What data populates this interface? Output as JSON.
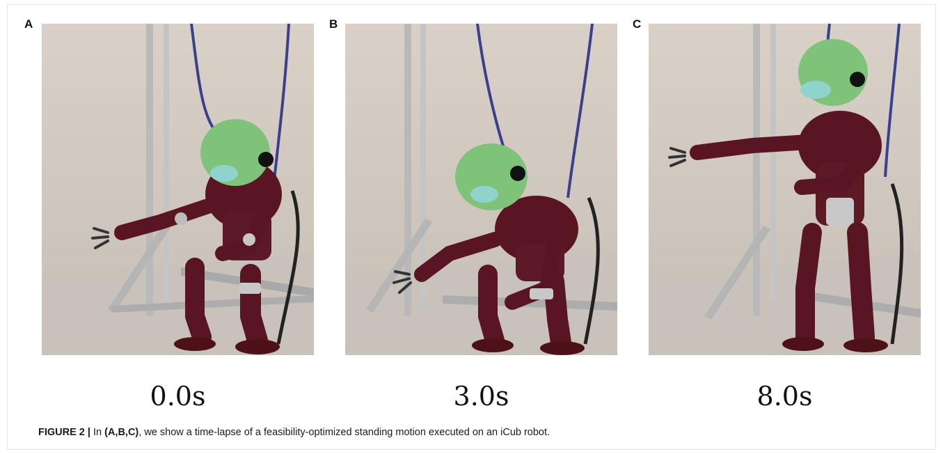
{
  "figure": {
    "panels": [
      {
        "letter": "A",
        "time": "0.0s",
        "pose": "sitting"
      },
      {
        "letter": "B",
        "time": "3.0s",
        "pose": "rising"
      },
      {
        "letter": "C",
        "time": "8.0s",
        "pose": "standing"
      }
    ],
    "caption": {
      "label": "FIGURE 2 |",
      "pre": " In ",
      "refs": "(A,B,C)",
      "post": ", we show a time-lapse of a feasibility-optimized standing motion executed on an iCub robot."
    },
    "colors": {
      "robot_body": "#5a1522",
      "robot_head": "#7fc27a",
      "frame": "#b8b8b8",
      "background": "#d6cec5"
    }
  }
}
